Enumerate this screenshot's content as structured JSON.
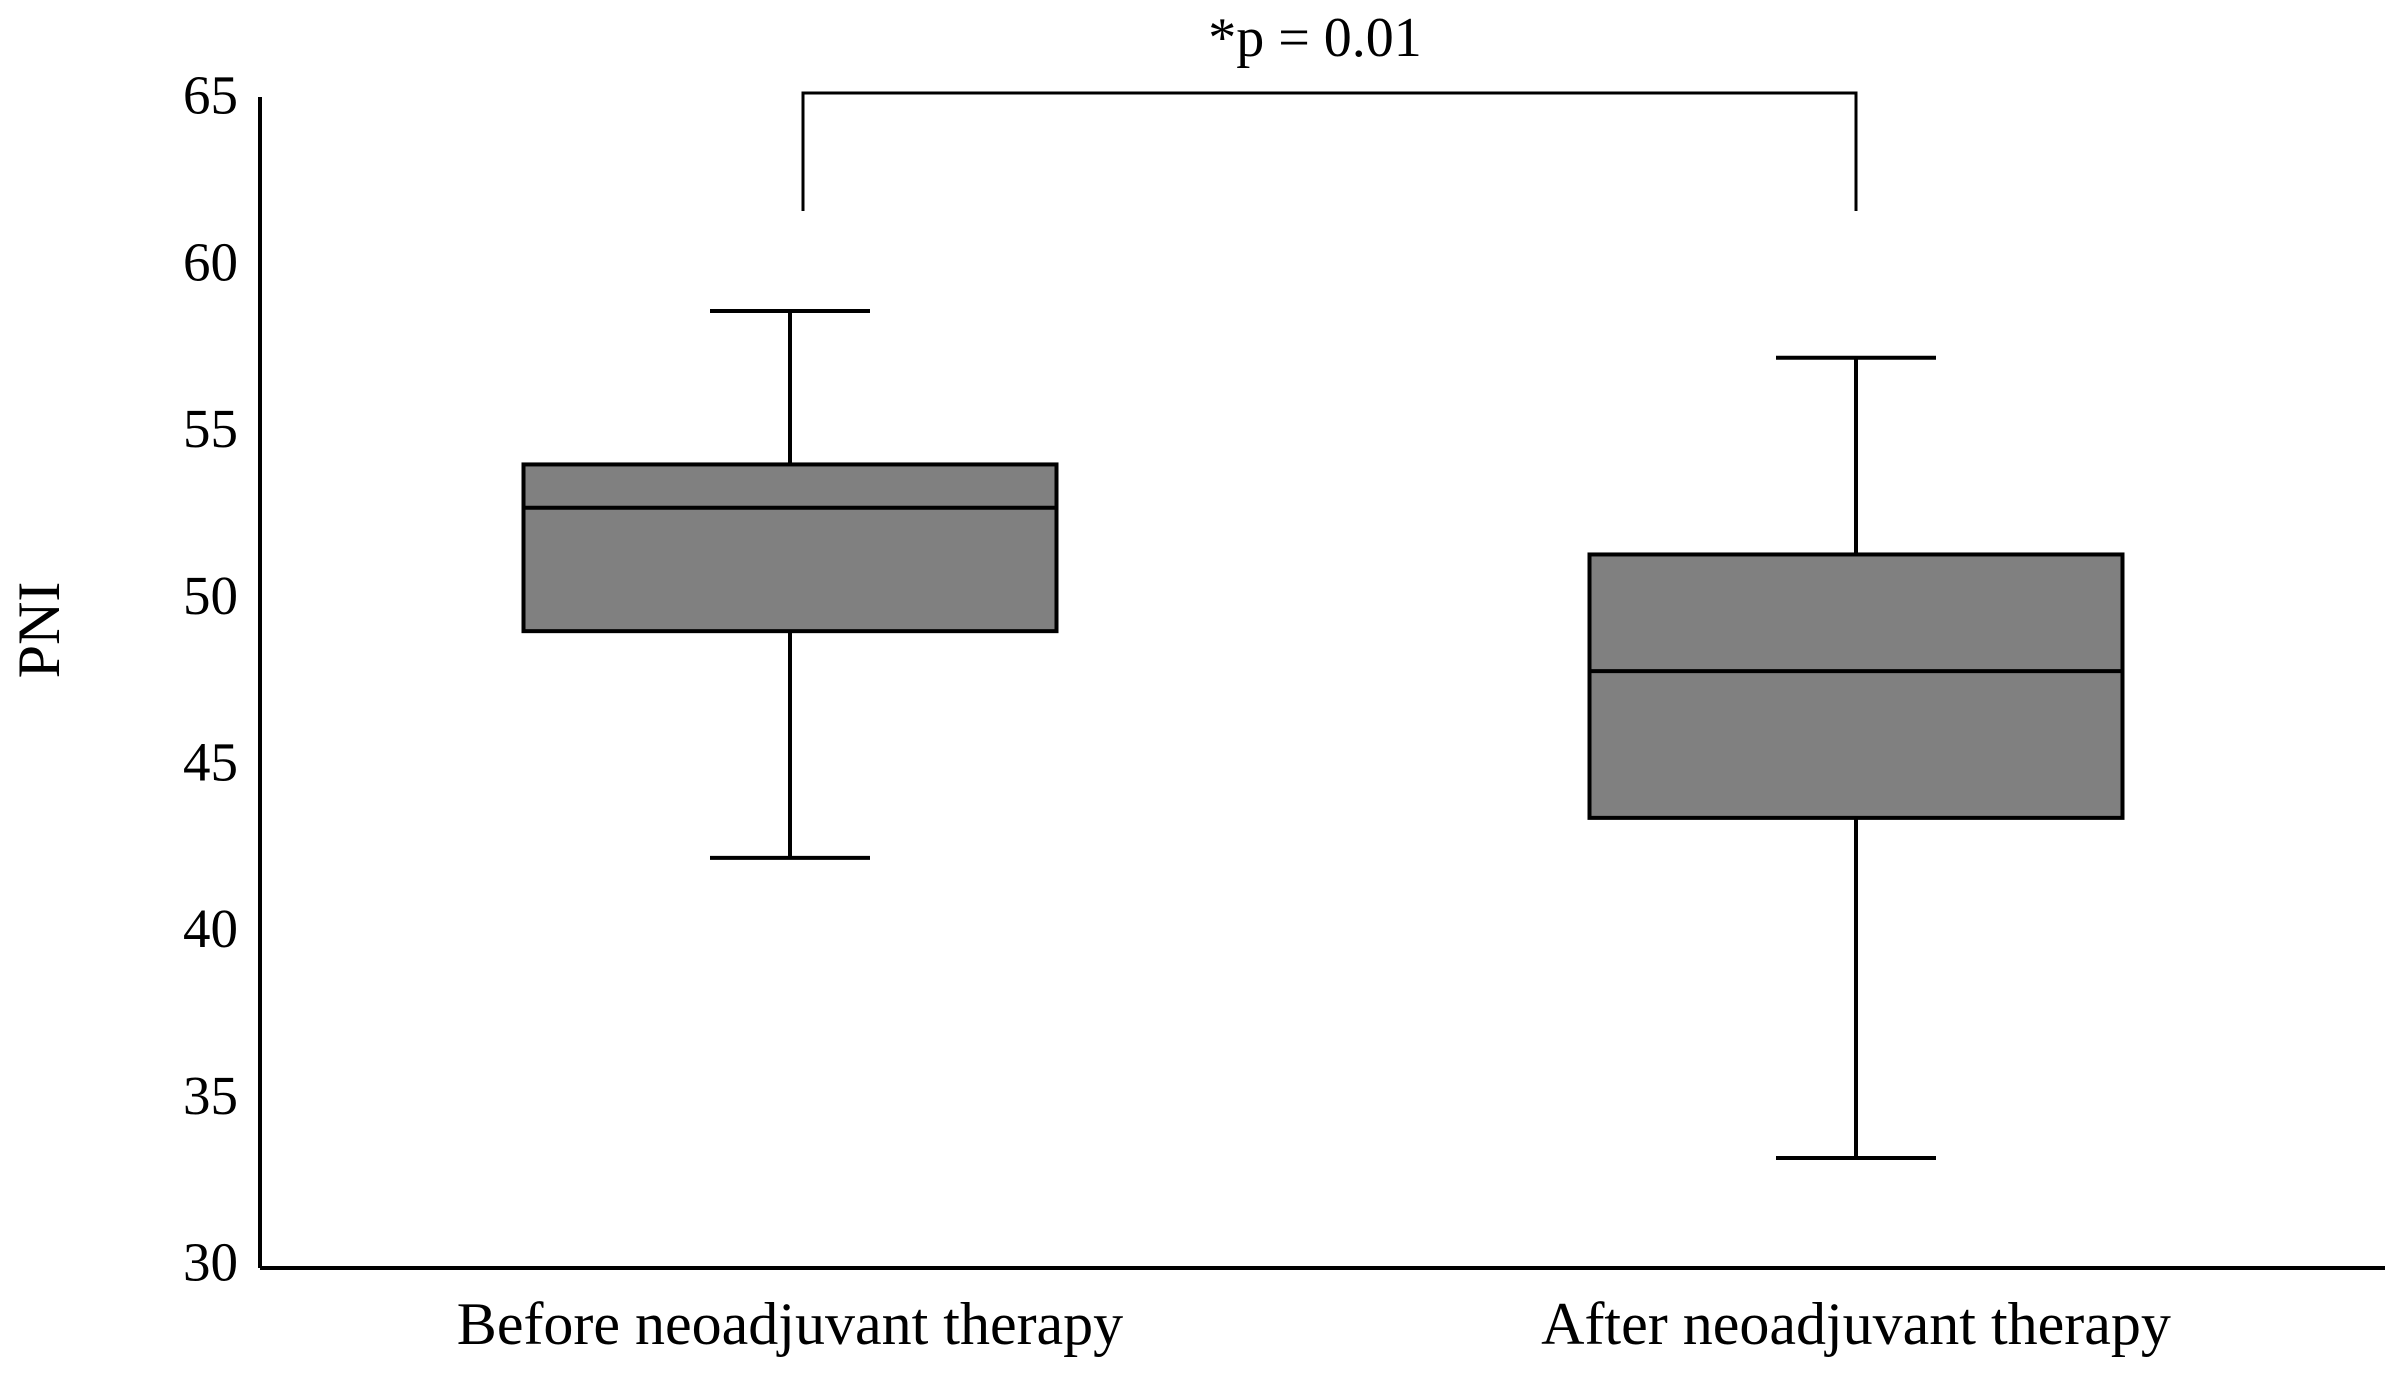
{
  "chart_data": {
    "type": "box",
    "ylabel": "PNI",
    "annotation": "*p = 0.01",
    "categories": [
      "Before neoadjuvant therapy",
      "After neoadjuvant therapy"
    ],
    "min": [
      42.3,
      33.3
    ],
    "q1": [
      49.1,
      43.5
    ],
    "median": [
      52.8,
      47.9
    ],
    "q3": [
      54.1,
      51.4
    ],
    "max": [
      58.7,
      57.3
    ],
    "color": "#808080",
    "ylim": [
      30,
      65
    ],
    "yticks": [
      30,
      35,
      40,
      45,
      50,
      55,
      60,
      65
    ],
    "grid": false
  }
}
